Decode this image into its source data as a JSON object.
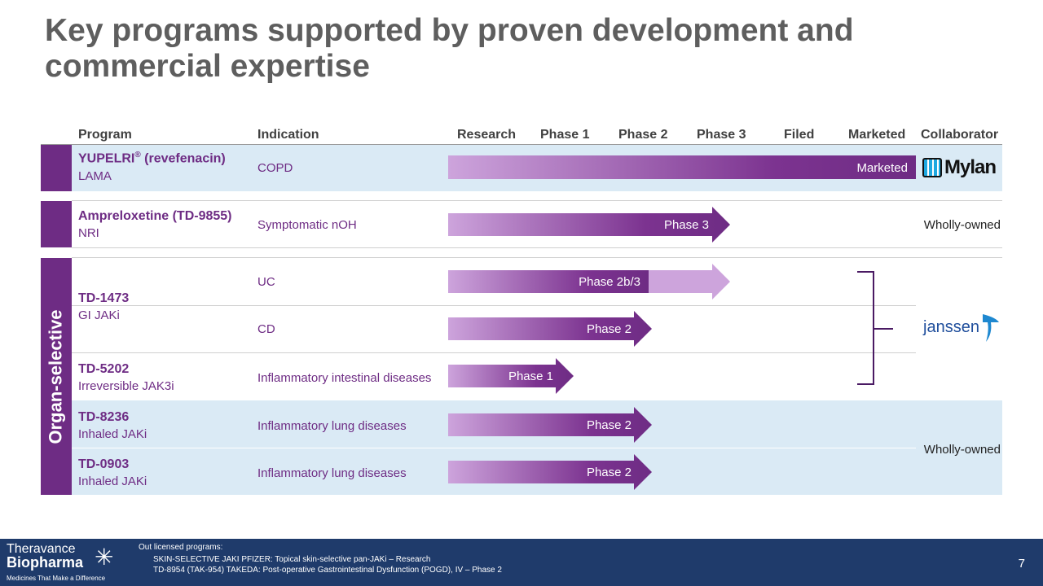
{
  "title": "Key programs supported by proven development and commercial expertise",
  "columns": [
    "Program",
    "Indication",
    "Research",
    "Phase 1",
    "Phase 2",
    "Phase 3",
    "Filed",
    "Marketed",
    "Collaborator"
  ],
  "group_label": "Organ-selective",
  "programs": [
    {
      "name": "YUPELRI",
      "reg": "®",
      "name_suffix": " (revefenacin)",
      "sub": "LAMA",
      "indication": "COPD",
      "stage": "Marketed",
      "collaborator": "Mylan"
    },
    {
      "name": "Ampreloxetine (TD-9855)",
      "sub": "NRI",
      "indication": "Symptomatic nOH",
      "stage": "Phase 3",
      "collaborator": "Wholly-owned"
    },
    {
      "name": "TD-1473",
      "sub": "GI JAKi",
      "indications": [
        {
          "indication": "UC",
          "stage": "Phase 2b/3"
        },
        {
          "indication": "CD",
          "stage": "Phase 2"
        }
      ],
      "collaborator": "Janssen"
    },
    {
      "name": "TD-5202",
      "sub": "Irreversible JAK3i",
      "indication": "Inflammatory intestinal diseases",
      "stage": "Phase 1"
    },
    {
      "name": "TD-8236",
      "sub": "Inhaled JAKi",
      "indication": "Inflammatory lung diseases",
      "stage": "Phase 2"
    },
    {
      "name": "TD-0903",
      "sub": "Inhaled JAKi",
      "indication": "Inflammatory lung diseases",
      "stage": "Phase 2",
      "collaborator": "Wholly-owned"
    }
  ],
  "footer": {
    "logo_line1": "Theravance",
    "logo_line2": "Biopharma",
    "tagline": "Medicines That Make a Difference",
    "out_title": "Out licensed programs:",
    "out_items": [
      "SKIN-SELECTIVE JAKI PFIZER: Topical skin-selective pan-JAKi – Research",
      "TD-8954 (TAK-954) TAKEDA: Post-operative Gastrointestinal Dysfunction (POGD), IV – Phase 2"
    ],
    "page": "7"
  },
  "colors": {
    "purple": "#6e2c84",
    "light_purple": "#c9a0d8",
    "row_blue": "#daeaf5",
    "footer": "#1f3b6b"
  }
}
